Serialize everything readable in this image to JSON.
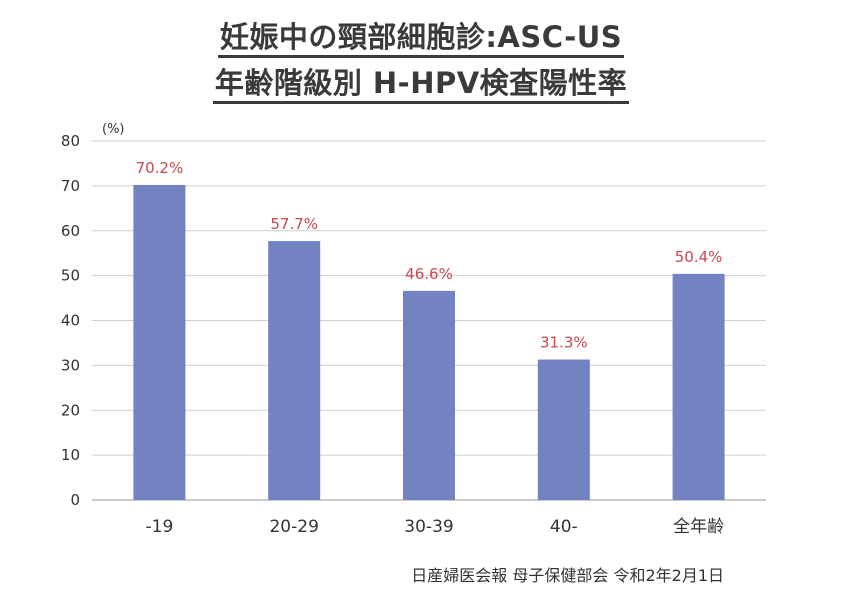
{
  "chart_data": {
    "type": "bar",
    "title": "妊娠中の頸部細胞診:ASC-US",
    "subtitle": "年齢階級別 H-HPV検査陽性率",
    "ylabel": "(%)",
    "ylim": [
      0,
      80
    ],
    "yticks": [
      0,
      10,
      20,
      30,
      40,
      50,
      60,
      70,
      80
    ],
    "grid": true,
    "categories": [
      "-19",
      "20-29",
      "30-39",
      "40-",
      "全年齢"
    ],
    "values": [
      70.2,
      57.7,
      46.6,
      31.3,
      50.4
    ],
    "data_labels": [
      "70.2%",
      "57.7%",
      "46.6%",
      "31.3%",
      "50.4%"
    ],
    "bar_color": "#7382c0",
    "label_color": "#c8484e",
    "grid_color": "#cfcfcf"
  },
  "source": "日産婦医会報 母子保健部会 令和2年2月1日"
}
